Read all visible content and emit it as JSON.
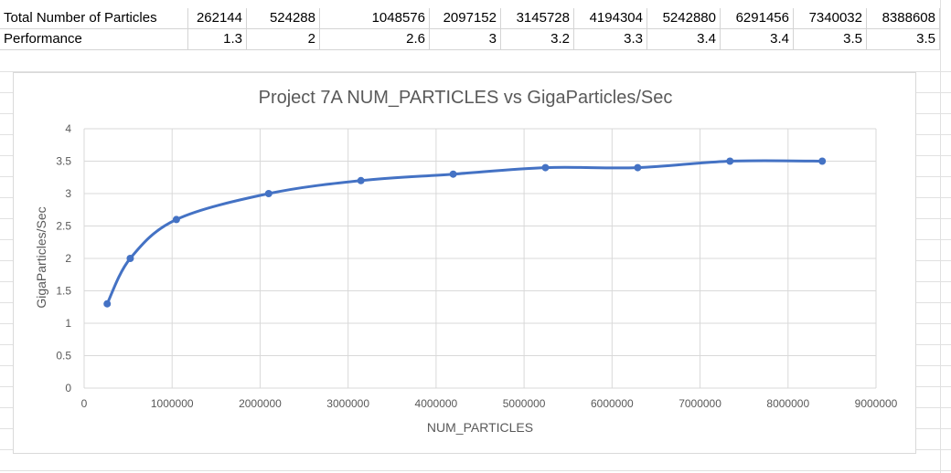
{
  "table": {
    "row1": {
      "label": "Total Number of Particles",
      "values": [
        "262144",
        "524288",
        "1048576",
        "2097152",
        "3145728",
        "4194304",
        "5242880",
        "6291456",
        "7340032",
        "8388608"
      ]
    },
    "row2": {
      "label": "Performance",
      "values": [
        "1.3",
        "2",
        "2.6",
        "3",
        "3.2",
        "3.3",
        "3.4",
        "3.4",
        "3.5",
        "3.5"
      ]
    }
  },
  "chart_data": {
    "type": "scatter",
    "title": "Project 7A NUM_PARTICLES vs GigaParticles/Sec",
    "xlabel": "NUM_PARTICLES",
    "ylabel": "GigaParticles/Sec",
    "xlim": [
      0,
      9000000
    ],
    "ylim": [
      0,
      4
    ],
    "x_ticks": [
      "0",
      "1000000",
      "2000000",
      "3000000",
      "4000000",
      "5000000",
      "6000000",
      "7000000",
      "8000000",
      "9000000"
    ],
    "y_ticks": [
      "0",
      "0.5",
      "1",
      "1.5",
      "2",
      "2.5",
      "3",
      "3.5",
      "4"
    ],
    "grid": true,
    "smooth": true,
    "series": [
      {
        "color": "#4472c4",
        "x": [
          262144,
          524288,
          1048576,
          2097152,
          3145728,
          4194304,
          5242880,
          6291456,
          7340032,
          8388608
        ],
        "y": [
          1.3,
          2,
          2.6,
          3,
          3.2,
          3.3,
          3.4,
          3.4,
          3.5,
          3.5
        ]
      }
    ]
  }
}
